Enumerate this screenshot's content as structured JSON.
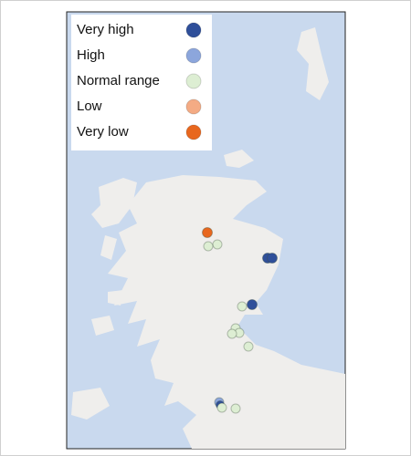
{
  "legend": {
    "items": [
      {
        "name": "Very high",
        "color": "#2f4f9a"
      },
      {
        "name": "High",
        "color": "#8ca6dc"
      },
      {
        "name": "Normal range",
        "color": "#ddeed3"
      },
      {
        "name": "Low",
        "color": "#f4ab84"
      },
      {
        "name": "Very low",
        "color": "#e8671e"
      }
    ]
  }
}
